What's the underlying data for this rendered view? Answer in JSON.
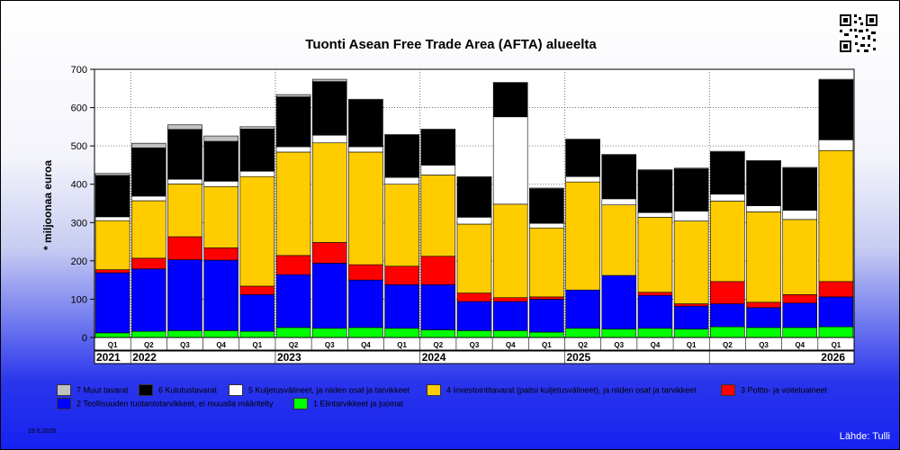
{
  "title": "Tuonti Asean Free Trade Area (AFTA) alueelta",
  "chart_data": {
    "type": "bar",
    "stacked": true,
    "ylabel": "* miljoonaa euroa",
    "ylim": [
      0,
      700
    ],
    "yticks": [
      "0",
      "100",
      "200",
      "300",
      "400",
      "500",
      "600",
      "700"
    ],
    "grid": true,
    "categories": [
      "Q1",
      "Q2",
      "Q3",
      "Q4",
      "Q1",
      "Q2",
      "Q3",
      "Q4",
      "Q1",
      "Q2",
      "Q3",
      "Q4",
      "Q1",
      "Q2",
      "Q3",
      "Q4",
      "Q1",
      "Q2",
      "Q3",
      "Q4",
      "Q1"
    ],
    "years": [
      {
        "label": "2021",
        "start": 0,
        "end": 0
      },
      {
        "label": "2022",
        "start": 1,
        "end": 4
      },
      {
        "label": "2023",
        "start": 5,
        "end": 8
      },
      {
        "label": "2024",
        "start": 9,
        "end": 12
      },
      {
        "label": "2025",
        "start": 13,
        "end": 16
      },
      {
        "label": "2026",
        "start": 17,
        "end": 20
      }
    ],
    "series": [
      {
        "name": "1 Elintarvikkeet ja juomat",
        "color": "#00ff00",
        "values": [
          12,
          16,
          18,
          18,
          16,
          26,
          24,
          26,
          24,
          20,
          18,
          18,
          14,
          24,
          22,
          24,
          22,
          28,
          26,
          26,
          28
        ]
      },
      {
        "name": "2 Teollisuuden tuotantotarvikkeet, ei muualla määritelty",
        "color": "#0000ff",
        "values": [
          157,
          163,
          185,
          184,
          96,
          138,
          170,
          124,
          114,
          118,
          76,
          76,
          86,
          100,
          140,
          86,
          60,
          60,
          52,
          64,
          78
        ]
      },
      {
        "name": "3 Poltto- ja voiteluaineet",
        "color": "#ff0000",
        "values": [
          8,
          28,
          60,
          32,
          22,
          50,
          54,
          40,
          48,
          74,
          22,
          10,
          6,
          0,
          0,
          8,
          6,
          58,
          14,
          22,
          40
        ]
      },
      {
        "name": "4 Investointitavarat (paitsi kuljetusvälineet), ja niiden osat ja tarvikkeet",
        "color": "#ffcc00",
        "values": [
          128,
          150,
          138,
          160,
          286,
          270,
          260,
          294,
          214,
          212,
          180,
          244,
          180,
          282,
          184,
          196,
          216,
          210,
          236,
          196,
          342
        ]
      },
      {
        "name": "5 Kuljetusvälineet, ja niiden osat ja tarvikkeet",
        "color": "#ffffff",
        "values": [
          10,
          12,
          12,
          14,
          14,
          14,
          20,
          14,
          18,
          26,
          18,
          228,
          12,
          14,
          16,
          12,
          26,
          18,
          16,
          24,
          28
        ]
      },
      {
        "name": "6 Kulutustavarat",
        "color": "#000000",
        "values": [
          108,
          126,
          130,
          104,
          110,
          130,
          140,
          122,
          110,
          92,
          104,
          88,
          90,
          96,
          114,
          110,
          110,
          110,
          116,
          110,
          156
        ]
      },
      {
        "name": "7 Muut tavarat",
        "color": "#c0c0c0",
        "values": [
          5,
          12,
          12,
          14,
          6,
          6,
          6,
          2,
          2,
          2,
          2,
          2,
          2,
          2,
          2,
          2,
          2,
          2,
          2,
          2,
          2
        ]
      }
    ],
    "legend_position": "bottom"
  },
  "footer": {
    "date": "29.6.2026",
    "source": "Lähde: Tulli"
  },
  "icons": {
    "qr": "qr-code-icon"
  }
}
